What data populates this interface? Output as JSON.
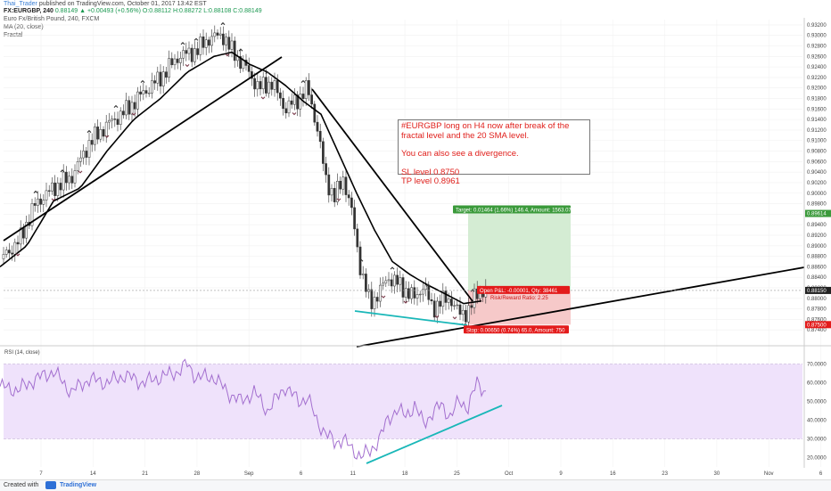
{
  "header": {
    "user": "Thai_Trader",
    "published": "published on TradingView.com, October 01, 2017 13:42 EST",
    "symbol": "FX:EURGBP, 240",
    "quote": "0.88149 ▲ +0.00493 (+0.56%) O:0.88112 H:0.88272 L:0.88108 C:0.88149",
    "instrument": "Euro Fx/British Pound, 240, FXCM",
    "ma": "MA (20, close)",
    "fractal": "Fractal",
    "rsi": "RSI (14, close)"
  },
  "annotation": {
    "line1": "#EURGBP long on H4 now after break of the",
    "line2": "fractal level and the 20 SMA level.",
    "line3": "You can also see a divergence.",
    "line4": "SL level 0.8750",
    "line5": "TP level 0.8961"
  },
  "position": {
    "target_label": "Target: 0.01464 (1.66%) 146.4, Amount: 1563.07",
    "open_label": "Open P&L: -0.00001, Qty: 38461",
    "rr_label": "Risk/Reward Ratio: 2.25",
    "stop_label": "Stop: 0.00650 (0.74%) 65.0, Amount: 750",
    "entry": 0.8815,
    "target": 0.89614,
    "stop": 0.875
  },
  "colors": {
    "up": "#2b2b2b",
    "ma": "#000000",
    "trend": "#000000",
    "support": "#19b7b8",
    "rsi_line": "#a36fcf",
    "rsi_band": "#efe2fb",
    "target_zone": "#d4ecd3",
    "stop_zone": "#f6c9c9",
    "label_green": "#3b9a3b",
    "label_red": "#e31b1b"
  },
  "chart_data": [
    {
      "type": "candlestick",
      "ylim": [
        0.872,
        0.933
      ],
      "yticks": [
        0.874,
        0.876,
        0.878,
        0.88,
        0.882,
        0.884,
        0.886,
        0.888,
        0.89,
        0.892,
        0.894,
        0.896,
        0.898,
        0.9,
        0.902,
        0.904,
        0.906,
        0.908,
        0.91,
        0.912,
        0.914,
        0.916,
        0.918,
        0.92,
        0.922,
        0.924,
        0.926,
        0.928,
        0.93,
        0.932
      ],
      "ytick_labels": [
        "0.87400",
        "0.87600",
        "0.87800",
        "0.88000",
        "0.88200",
        "0.88400",
        "0.88600",
        "0.88800",
        "0.89000",
        "0.89200",
        "0.89400",
        "0.89600",
        "0.89800",
        "0.90000",
        "0.90200",
        "0.90400",
        "0.90600",
        "0.90800",
        "0.91000",
        "0.91200",
        "0.91400",
        "0.91600",
        "0.91800",
        "0.92000",
        "0.92200",
        "0.92400",
        "0.92600",
        "0.92800",
        "0.93000",
        "0.93200"
      ],
      "price_tags": [
        "0.89614",
        "0.88150",
        "0.87500"
      ],
      "xticks": [
        "7",
        "14",
        "21",
        "28",
        "Sep",
        "6",
        "11",
        "18",
        "25",
        "Oct",
        "9",
        "16",
        "23",
        "30",
        "Nov",
        "6"
      ],
      "price_keypoints": [
        [
          0,
          0.8875
        ],
        [
          20,
          0.8905
        ],
        [
          40,
          0.898
        ],
        [
          60,
          0.901
        ],
        [
          80,
          0.903
        ],
        [
          100,
          0.9095
        ],
        [
          120,
          0.913
        ],
        [
          140,
          0.9155
        ],
        [
          160,
          0.919
        ],
        [
          180,
          0.922
        ],
        [
          200,
          0.926
        ],
        [
          220,
          0.927
        ],
        [
          235,
          0.9295
        ],
        [
          250,
          0.93
        ],
        [
          260,
          0.927
        ],
        [
          275,
          0.924
        ],
        [
          290,
          0.92
        ],
        [
          305,
          0.921
        ],
        [
          320,
          0.916
        ],
        [
          335,
          0.918
        ],
        [
          345,
          0.92
        ],
        [
          355,
          0.913
        ],
        [
          365,
          0.903
        ],
        [
          375,
          0.899
        ],
        [
          385,
          0.903
        ],
        [
          395,
          0.896
        ],
        [
          405,
          0.885
        ],
        [
          415,
          0.879
        ],
        [
          425,
          0.881
        ],
        [
          435,
          0.884
        ],
        [
          445,
          0.883
        ],
        [
          455,
          0.8815
        ],
        [
          465,
          0.88
        ],
        [
          475,
          0.8825
        ],
        [
          485,
          0.878
        ],
        [
          495,
          0.8795
        ],
        [
          505,
          0.88
        ],
        [
          515,
          0.877
        ],
        [
          525,
          0.8775
        ],
        [
          535,
          0.881
        ],
        [
          545,
          0.8815
        ]
      ],
      "ma_keypoints": [
        [
          0,
          0.886
        ],
        [
          30,
          0.89
        ],
        [
          60,
          0.8985
        ],
        [
          90,
          0.901
        ],
        [
          120,
          0.908
        ],
        [
          150,
          0.914
        ],
        [
          180,
          0.918
        ],
        [
          210,
          0.923
        ],
        [
          240,
          0.926
        ],
        [
          260,
          0.9268
        ],
        [
          280,
          0.9245
        ],
        [
          300,
          0.923
        ],
        [
          320,
          0.9205
        ],
        [
          340,
          0.9175
        ],
        [
          360,
          0.915
        ],
        [
          380,
          0.9075
        ],
        [
          400,
          0.9
        ],
        [
          420,
          0.893
        ],
        [
          440,
          0.887
        ],
        [
          460,
          0.8845
        ],
        [
          480,
          0.8825
        ],
        [
          500,
          0.8808
        ],
        [
          520,
          0.879
        ],
        [
          540,
          0.8795
        ]
      ]
    },
    {
      "type": "line",
      "name": "RSI",
      "ylim": [
        15,
        75
      ],
      "yticks": [
        20,
        30,
        40,
        50,
        60,
        70
      ],
      "ytick_labels": [
        "20.0000",
        "30.0000",
        "40.0000",
        "50.0000",
        "60.0000",
        "70.0000"
      ],
      "band": [
        30,
        70
      ],
      "keypoints": [
        [
          0,
          58
        ],
        [
          20,
          56
        ],
        [
          40,
          62
        ],
        [
          60,
          66
        ],
        [
          80,
          55
        ],
        [
          100,
          62
        ],
        [
          120,
          60
        ],
        [
          140,
          64
        ],
        [
          160,
          60
        ],
        [
          180,
          63
        ],
        [
          200,
          66
        ],
        [
          210,
          70
        ],
        [
          220,
          63
        ],
        [
          240,
          63
        ],
        [
          255,
          55
        ],
        [
          270,
          50
        ],
        [
          285,
          55
        ],
        [
          300,
          45
        ],
        [
          320,
          58
        ],
        [
          335,
          50
        ],
        [
          345,
          52
        ],
        [
          355,
          40
        ],
        [
          365,
          33
        ],
        [
          375,
          28
        ],
        [
          385,
          30
        ],
        [
          395,
          24
        ],
        [
          405,
          21
        ],
        [
          415,
          23
        ],
        [
          425,
          30
        ],
        [
          435,
          40
        ],
        [
          445,
          46
        ],
        [
          455,
          42
        ],
        [
          465,
          48
        ],
        [
          475,
          38
        ],
        [
          485,
          44
        ],
        [
          495,
          48
        ],
        [
          505,
          42
        ],
        [
          515,
          50
        ],
        [
          525,
          47
        ],
        [
          535,
          60
        ],
        [
          545,
          55
        ]
      ]
    }
  ]
}
